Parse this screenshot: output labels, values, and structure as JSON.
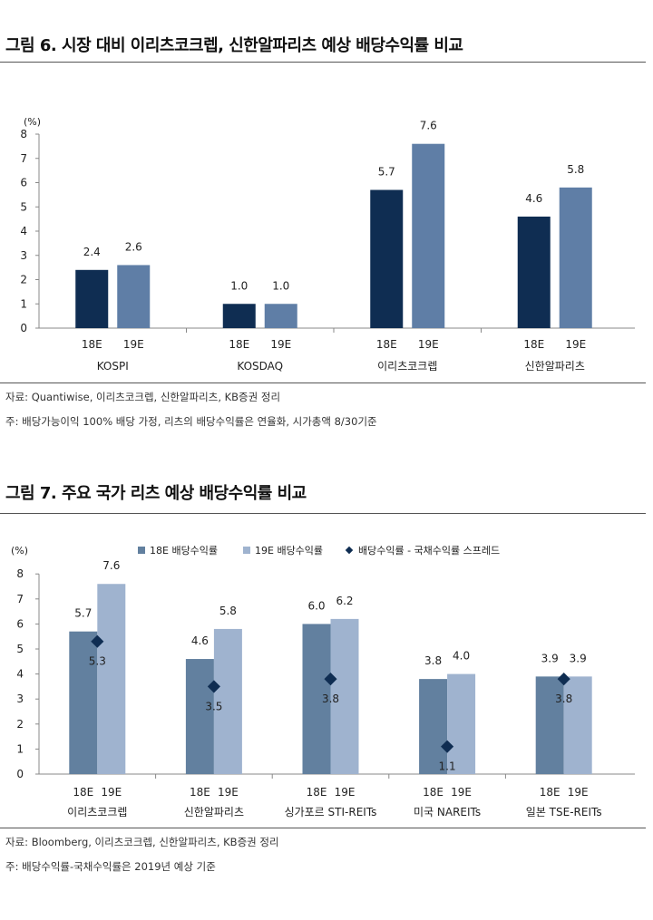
{
  "figure6": {
    "title": "그림 6. 시장 대비 이리츠코크렙, 신한알파리츠 예상 배당수익률 비교",
    "source": "자료: Quantiwise, 이리츠코크렙, 신한알파리츠, KB증권 정리",
    "footnote": "주: 배당가능이익 100% 배당 가정, 리츠의 배당수익률은 연율화, 시가총액 8/30기준",
    "chart_data": {
      "type": "bar",
      "title": "",
      "unit_label": "(%)",
      "ylim": [
        0,
        8
      ],
      "yticks": [
        "0",
        "1",
        "2",
        "3",
        "4",
        "5",
        "6",
        "7",
        "8"
      ],
      "categories": [
        "KOSPI",
        "KOSDAQ",
        "이리츠코크렙",
        "신한알파리츠"
      ],
      "sub_labels": [
        "18E",
        "19E"
      ],
      "series": [
        {
          "values": [
            2.4,
            1.0,
            5.7,
            4.6
          ],
          "labels": [
            "2.4",
            "1.0",
            "5.7",
            "4.6"
          ],
          "color": "#0f2d52"
        },
        {
          "values": [
            2.6,
            1.0,
            7.6,
            5.8
          ],
          "labels": [
            "2.6",
            "1.0",
            "7.6",
            "5.8"
          ],
          "color": "#5f7ea6"
        }
      ],
      "legend": "none",
      "grid": false
    }
  },
  "figure7": {
    "title": "그림 7. 주요 국가 리츠 예상 배당수익률 비교",
    "source": "자료: Bloomberg, 이리츠코크렙, 신한알파리츠, KB증권 정리",
    "footnote": "주: 배당수익률-국채수익률은 2019년 예상 기준",
    "chart_data": {
      "type": "bar",
      "title": "",
      "unit_label": "(%)",
      "ylim": [
        0,
        8
      ],
      "yticks": [
        "0",
        "1",
        "2",
        "3",
        "4",
        "5",
        "6",
        "7",
        "8"
      ],
      "categories": [
        "이리츠코크렙",
        "신한알파리츠",
        "싱가포르 STI-REITs",
        "미국 NAREITs",
        "일본 TSE-REITs"
      ],
      "sub_labels": [
        "18E",
        "19E"
      ],
      "series": [
        {
          "name": "18E 배당수익률",
          "values": [
            5.7,
            4.6,
            6.0,
            3.8,
            3.9
          ],
          "labels": [
            "5.7",
            "4.6",
            "6.0",
            "3.8",
            "3.9"
          ],
          "color": "#62809f"
        },
        {
          "name": "19E 배당수익률",
          "values": [
            7.6,
            5.8,
            6.2,
            4.0,
            3.9
          ],
          "labels": [
            "7.6",
            "5.8",
            "6.2",
            "4.0",
            "3.9"
          ],
          "color": "#9fb3cf"
        },
        {
          "name": "배당수익률 - 국채수익률 스프레드",
          "type": "scatter",
          "marker": "diamond",
          "values": [
            5.3,
            3.5,
            3.8,
            1.1,
            3.8
          ],
          "labels": [
            "5.3",
            "3.5",
            "3.8",
            "1.1",
            "3.8"
          ],
          "color": "#0f2d52"
        }
      ],
      "legend": "top",
      "grid": false
    }
  }
}
